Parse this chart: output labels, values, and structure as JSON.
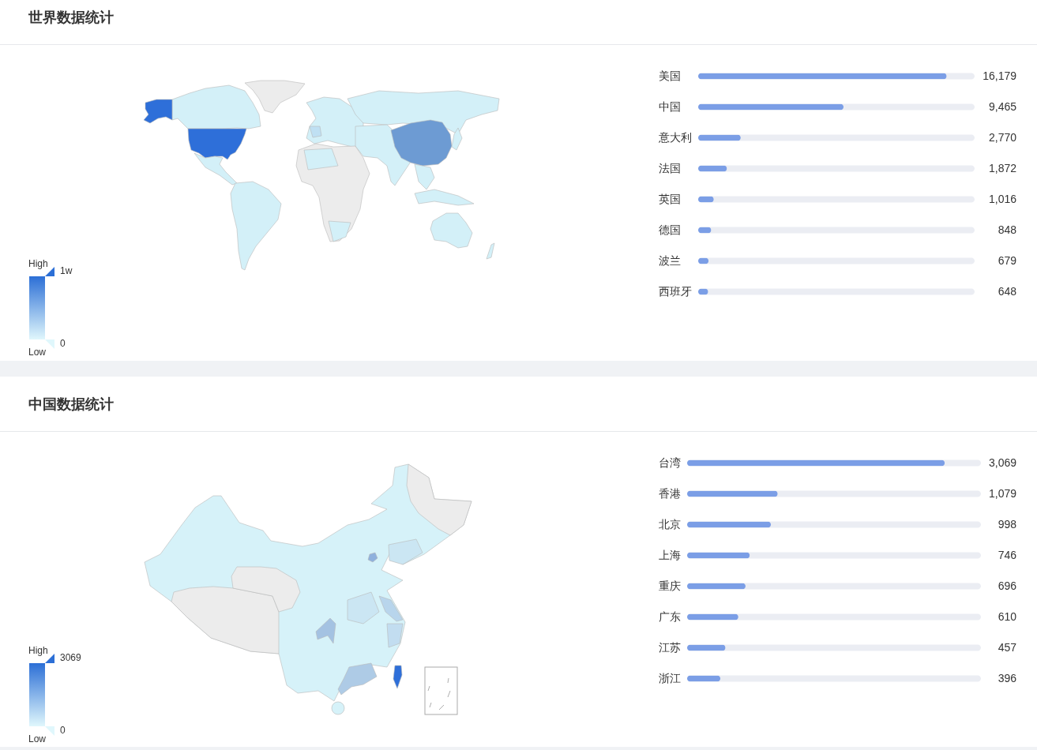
{
  "chart_data": [
    {
      "type": "other",
      "title": "世界数据统计",
      "annotations": [
        "High",
        "1w",
        "0",
        "Low"
      ]
    },
    {
      "type": "bar",
      "orientation": "horizontal",
      "categories": [
        "美国",
        "中国",
        "意大利",
        "法国",
        "英国",
        "德国",
        "波兰",
        "西班牙"
      ],
      "values": [
        16179,
        9465,
        2770,
        1872,
        1016,
        848,
        679,
        648
      ],
      "value_labels": [
        "16,179",
        "9,465",
        "2,770",
        "1,872",
        "1,016",
        "848",
        "679",
        "648"
      ],
      "color": "#7b9ee6",
      "tick_labels": "y"
    },
    {
      "type": "other",
      "title": "中国数据统计",
      "annotations": [
        "High",
        "3069",
        "0",
        "Low"
      ]
    },
    {
      "type": "bar",
      "orientation": "horizontal",
      "categories": [
        "台湾",
        "香港",
        "北京",
        "上海",
        "重庆",
        "广东",
        "江苏",
        "浙江"
      ],
      "values": [
        3069,
        1079,
        998,
        746,
        696,
        610,
        457,
        396
      ],
      "value_labels": [
        "3,069",
        "1,079",
        "998",
        "746",
        "696",
        "610",
        "457",
        "396"
      ],
      "color": "#7b9ee6",
      "tick_labels": "y"
    }
  ]
}
